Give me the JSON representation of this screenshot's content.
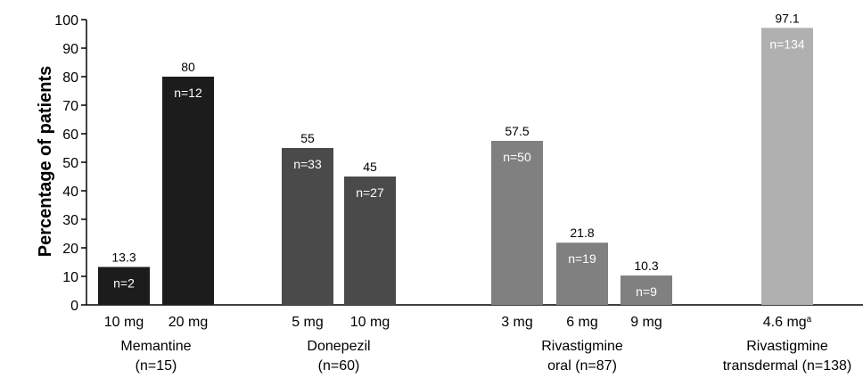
{
  "chart_data": {
    "type": "bar",
    "ylabel": "Percentage of patients",
    "ylim": [
      0,
      100
    ],
    "yticks": [
      0,
      10,
      20,
      30,
      40,
      50,
      60,
      70,
      80,
      90,
      100
    ],
    "grid": false,
    "bars": [
      {
        "group": "Memantine",
        "dose": "10 mg",
        "value": 13.3,
        "value_label": "13.3",
        "n_label": "n=2",
        "color": "#1c1c1c"
      },
      {
        "group": "Memantine",
        "dose": "20 mg",
        "value": 80,
        "value_label": "80",
        "n_label": "n=12",
        "color": "#1c1c1c"
      },
      {
        "group": "Donepezil",
        "dose": "5 mg",
        "value": 55,
        "value_label": "55",
        "n_label": "n=33",
        "color": "#4a4a4a"
      },
      {
        "group": "Donepezil",
        "dose": "10 mg",
        "value": 45,
        "value_label": "45",
        "n_label": "n=27",
        "color": "#4a4a4a"
      },
      {
        "group": "Rivastigmine oral",
        "dose": "3 mg",
        "value": 57.5,
        "value_label": "57.5",
        "n_label": "n=50",
        "color": "#808080"
      },
      {
        "group": "Rivastigmine oral",
        "dose": "6 mg",
        "value": 21.8,
        "value_label": "21.8",
        "n_label": "n=19",
        "color": "#808080"
      },
      {
        "group": "Rivastigmine oral",
        "dose": "9 mg",
        "value": 10.3,
        "value_label": "10.3",
        "n_label": "n=9",
        "color": "#808080"
      },
      {
        "group": "Rivastigmine transdermal",
        "dose": "4.6 mg",
        "dose_superscript": "a",
        "value": 97.1,
        "value_label": "97.1",
        "n_label": "n=134",
        "color": "#b0b0b0"
      }
    ],
    "groups": [
      {
        "line1": "Memantine",
        "line2": "(n=15)"
      },
      {
        "line1": "Donepezil",
        "line2": "(n=60)"
      },
      {
        "line1": "Rivastigmine",
        "line2": "oral (n=87)"
      },
      {
        "line1": "Rivastigmine",
        "line2": "transdermal (n=138)"
      }
    ]
  }
}
